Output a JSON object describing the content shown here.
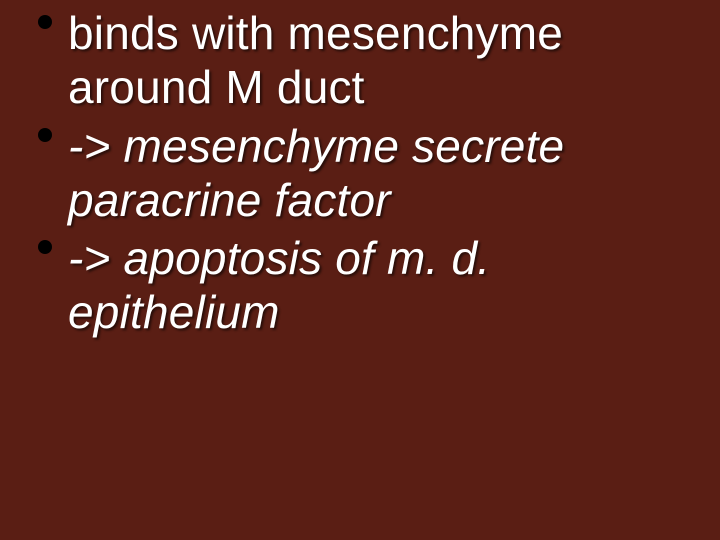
{
  "slide": {
    "background_color": "#5a1e14",
    "text_color": "#ffffff",
    "bullet_color": "#000000",
    "font_family": "Verdana",
    "font_size_pt": 34,
    "shadow_color": "rgba(0,0,0,0.55)",
    "items": [
      {
        "text": "binds with mesenchyme around M duct",
        "italic": false
      },
      {
        "text": "-> mesenchyme secrete paracrine factor",
        "italic": true
      },
      {
        "text": "-> apoptosis of m. d. epithelium",
        "italic": true
      }
    ]
  }
}
